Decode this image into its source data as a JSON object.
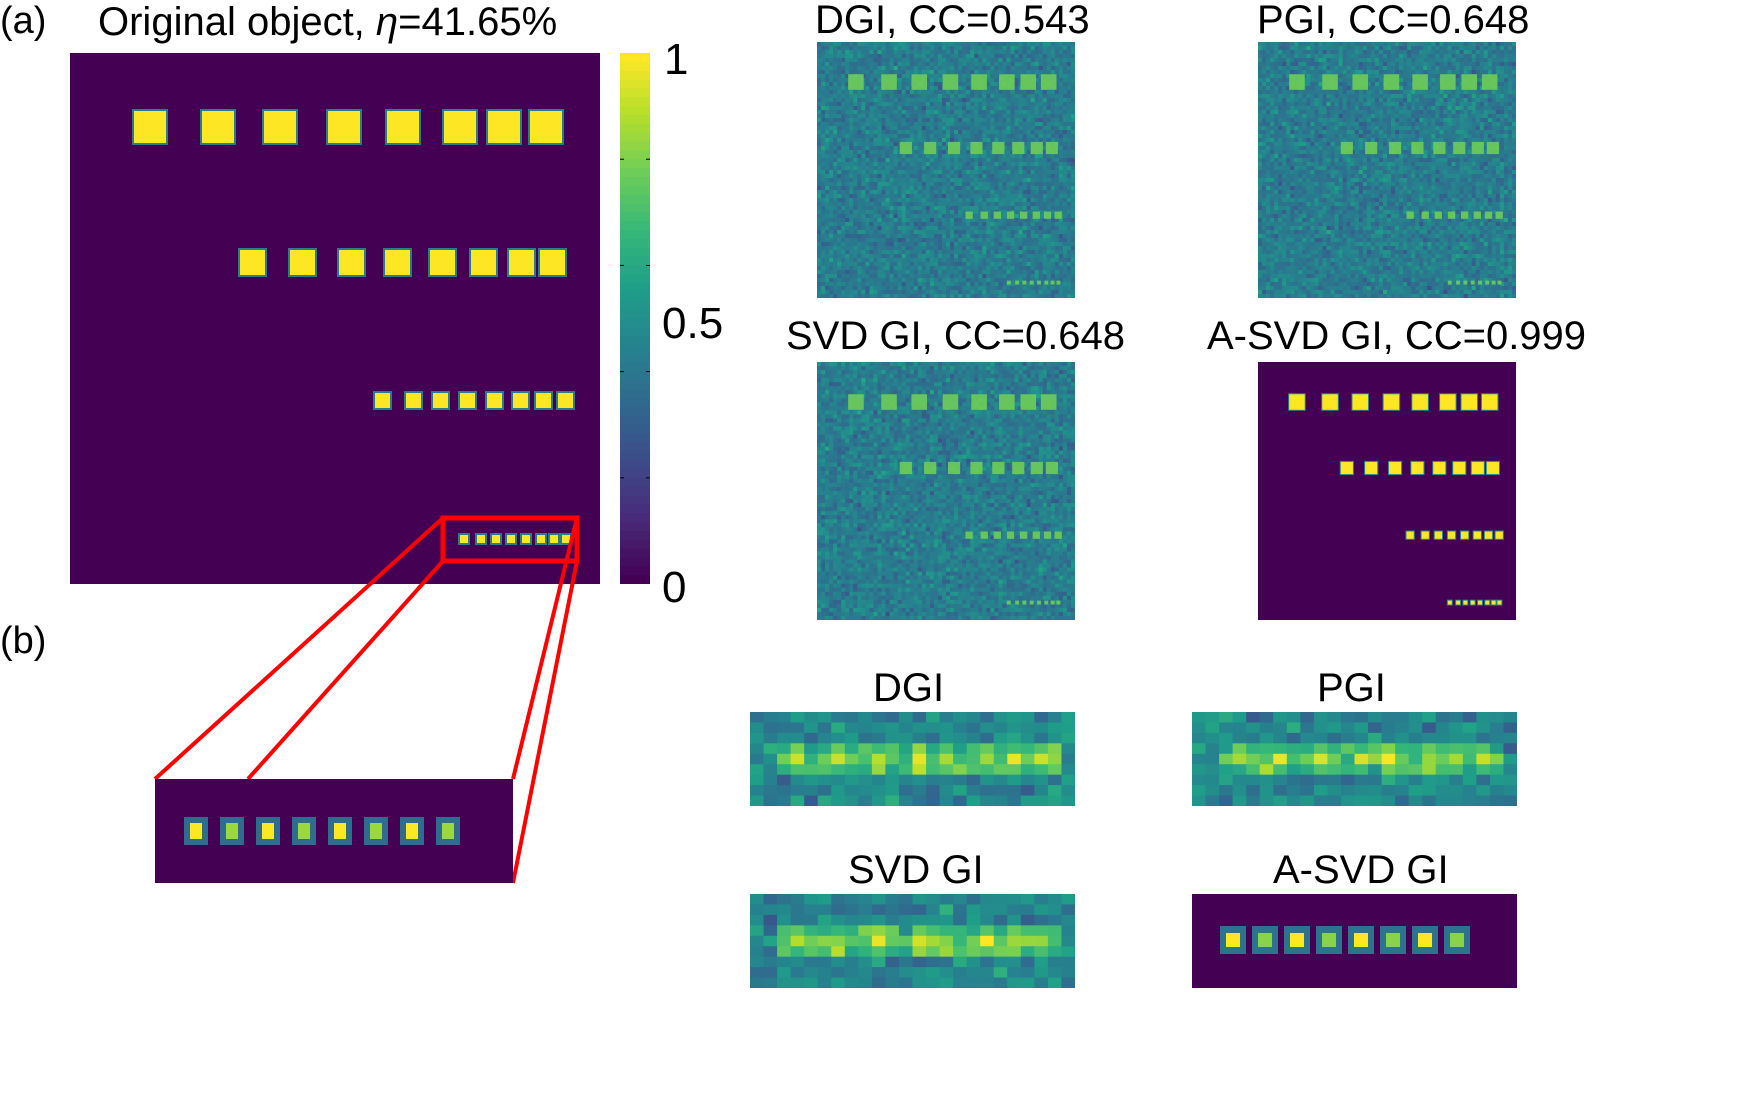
{
  "figure": {
    "panel_a_label": "(a)",
    "panel_b_label": "(b)",
    "original": {
      "title_prefix": "Original object, ",
      "title_symbol": "η",
      "title_value": "=41.65%"
    },
    "colorbar": {
      "colormap": "viridis",
      "tick_labels": [
        "1",
        "0.5",
        "0"
      ],
      "range": [
        0,
        1
      ]
    },
    "reconstructions": [
      {
        "name": "DGI",
        "title": "DGI, CC=0.543",
        "method": "DGI",
        "cc": 0.543
      },
      {
        "name": "PGI",
        "title": "PGI, CC=0.648",
        "method": "PGI",
        "cc": 0.648
      },
      {
        "name": "SVD GI",
        "title": "SVD GI, CC=0.648",
        "method": "SVD GI",
        "cc": 0.648
      },
      {
        "name": "A-SVD GI",
        "title": "A-SVD GI, CC=0.999",
        "method": "A-SVD GI",
        "cc": 0.999
      }
    ],
    "zoom_titles": [
      "DGI",
      "PGI",
      "SVD GI",
      "A-SVD GI"
    ],
    "colors": {
      "low": "#440154",
      "high": "#fde725",
      "zoom_box": "#ff0000"
    }
  }
}
